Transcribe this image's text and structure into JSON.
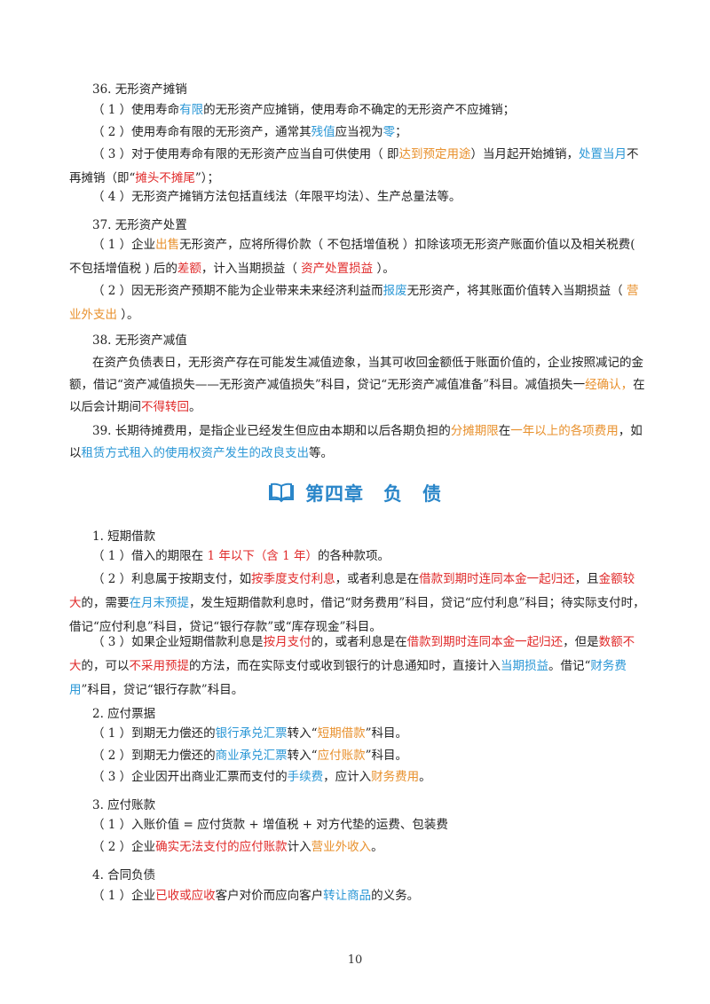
{
  "s36": {
    "title": "36. 无形资产摊销",
    "l1": {
      "a": "（ 1 ）使用寿命",
      "b": "有限",
      "c": "的无形资产应摊销，使用寿命不确定的无形资产不应摊销；"
    },
    "l2": {
      "a": "（ 2 ）使用寿命有限的无形资产，通常其",
      "b": "残值",
      "c": "应当视为",
      "d": "零",
      "e": "；"
    },
    "l3": {
      "a": "（ 3 ）对于使用寿命有限的无形资产应当自可供使用（ 即",
      "b": "达到预定用途",
      "c": "）当月起开始摊销，",
      "d": "处置当月",
      "e": "不再摊销（即“",
      "f": "摊头不摊尾",
      "g": "”）；"
    },
    "l4": "（ 4 ）无形资产摊销方法包括直线法（年限平均法）、生产总量法等。"
  },
  "s37": {
    "title": "37. 无形资产处置",
    "l1": {
      "a": "（ 1 ）企业",
      "b": "出售",
      "c": "无形资产，应将所得价款（ 不包括增值税 ）扣除该项无形资产账面价值以及相关税费( 不包括增值税 ) 后的",
      "d": "差额",
      "e": "，计入当期损益（ ",
      "f": "资产处置损益",
      "g": " ）。"
    },
    "l2": {
      "a": "（ 2 ）因无形资产预期不能为企业带来未来经济利益而",
      "b": "报废",
      "c": "无形资产，将其账面价值转入当期损益（ ",
      "d": "营业外支出",
      "e": " ）。"
    }
  },
  "s38": {
    "title": "38. 无形资产减值",
    "p": {
      "a": "在资产负债表日，无形资产存在可能发生减值迹象，当其可收回金额低于账面价值的，企业按照减记的金额，借记“资产减值损失——无形资产减值损失”科目，贷记“无形资产减值准备”科目。减值损失一",
      "b": "经确认，",
      "c": "在以后会计期间",
      "d": "不得转回",
      "e": "。"
    }
  },
  "s39": {
    "a": "39. 长期待摊费用，是指企业已经发生但应由本期和以后各期负担的",
    "b": "分摊期限",
    "c": "在",
    "d": "一年以上的各项费用",
    "e": "，如以",
    "f": "租赁方式租入的使用权资产发生的改良支出",
    "g": "等。"
  },
  "chapter": {
    "title_a": "第四章",
    "title_b": "负　债",
    "icon": "book-icon"
  },
  "d1": {
    "title": "1. 短期借款",
    "l1": {
      "a": "（ 1 ）借入的期限在 ",
      "b": "1 年以下（含 1 年）",
      "c": "的各种款项。"
    },
    "l2": {
      "a": "（ 2 ）利息属于按期支付，如",
      "b": "按季度支付利息",
      "c": "，或者利息是在",
      "d": "借款到期时连同本金一起归还",
      "e": "，且",
      "f": "金额较大",
      "g": "的，需要",
      "h": "在月末预提",
      "i": "，发生短期借款利息时，借记“财务费用”科目，贷记“应付利息”科目；待实际支付时，借记“应付利息”科目，贷记“银行存款”或“库存现金”科目。"
    },
    "l3": {
      "a": "（ 3 ）如果企业短期借款利息是",
      "b": "按月支付",
      "c": "的，或者利息是在",
      "d": "借款到期时连同本金一起归还",
      "e": "，但是",
      "f": "数额不大",
      "g": "的，可以",
      "h": "不采用预提",
      "i": "的方法，而在实际支付或收到银行的计息通知时，直接计入",
      "j": "当期损益",
      "k": "。借记“",
      "l": "财务费用",
      "m": "”科目，贷记“银行存款”科目。"
    }
  },
  "d2": {
    "title": "2. 应付票据",
    "l1": {
      "a": "（ 1 ）到期无力偿还的",
      "b": "银行承兑汇票",
      "c": "转入“",
      "d": "短期借款",
      "e": "”科目。"
    },
    "l2": {
      "a": "（ 2 ）到期无力偿还的",
      "b": "商业承兑汇票",
      "c": "转入“",
      "d": "应付账款",
      "e": "”科目。"
    },
    "l3": {
      "a": "（ 3 ）企业因开出商业汇票而支付的",
      "b": "手续费",
      "c": "，应计入",
      "d": "财务费用",
      "e": "。"
    }
  },
  "d3": {
    "title": "3. 应付账款",
    "l1": "（ 1 ）入账价值 = 应付货款 + 增值税 + 对方代垫的运费、包装费",
    "l2": {
      "a": "（ 2 ）企业",
      "b": "确实无法支付的应付账款",
      "c": "计入",
      "d": "营业外收入",
      "e": "。"
    }
  },
  "d4": {
    "title": "4. 合同负债",
    "l1": {
      "a": "（ 1 ）企业",
      "b": "已收或应收",
      "c": "客户对价而应向客户",
      "d": "转让商品",
      "e": "的义务。"
    }
  },
  "page_number": "10",
  "colors": {
    "blue": "#2a97d6",
    "red": "#e02a2a",
    "orange": "#e8902c",
    "chapter": "#2a86c9"
  }
}
